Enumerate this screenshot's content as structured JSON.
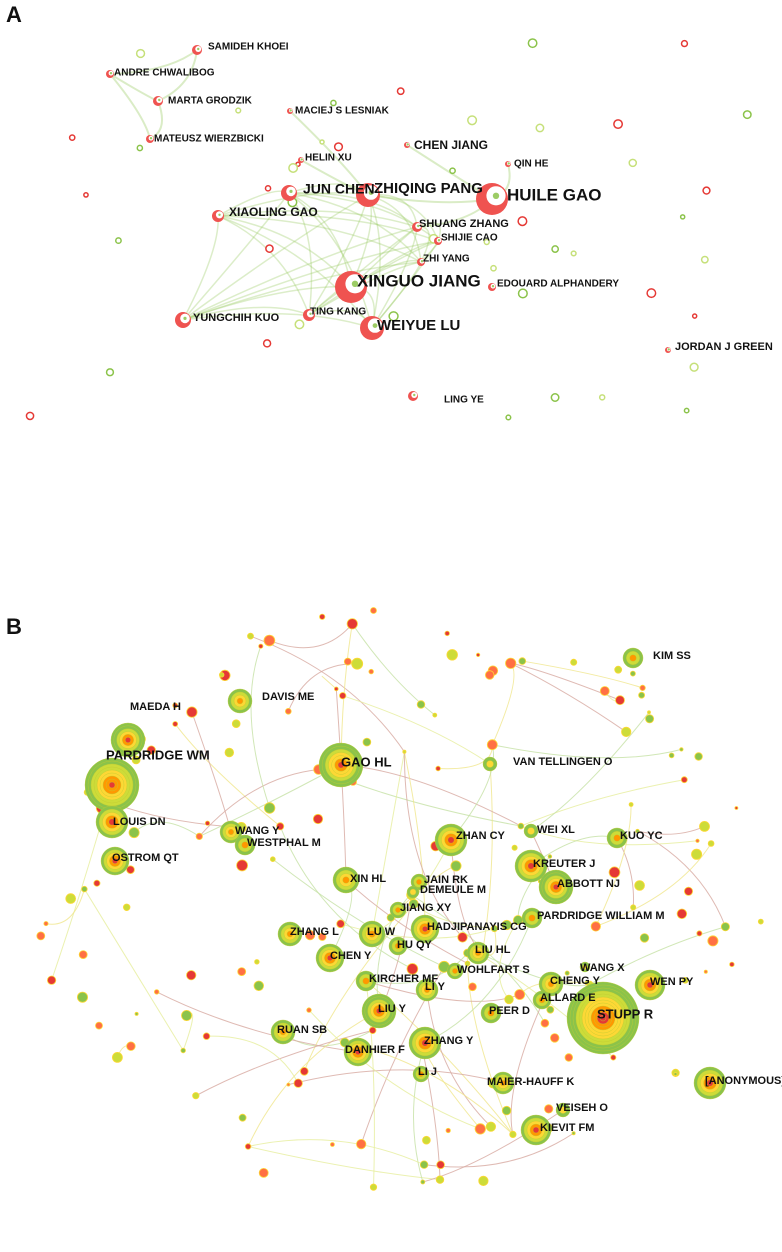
{
  "panels": [
    {
      "label": "A",
      "nodes": [
        "SAMIDEH KHOEI",
        "ANDRE CHWALIBOG",
        "MARTA GRODZIK",
        "MATEUSZ WIERZBICKI",
        "MACIEJ S LESNIAK",
        "HELIN XU",
        "CHEN JIANG",
        "QIN HE",
        "JUN CHEN",
        "ZHIQING PANG",
        "HUILE GAO",
        "XIAOLING GAO",
        "SHUANG ZHANG",
        "SHIJIE CAO",
        "ZHI YANG",
        "XINGUO JIANG",
        "EDOUARD ALPHANDERY",
        "YUNGCHIH KUO",
        "TING KANG",
        "WEIYUE LU",
        "JORDAN J GREEN",
        "LING YE"
      ]
    },
    {
      "label": "B",
      "nodes": [
        "KIM SS",
        "DAVIS ME",
        "MAEDA H",
        "VAN TELLINGEN O",
        "PARDRIDGE WM",
        "GAO HL",
        "LOUIS DN",
        "WANG Y",
        "WEI XL",
        "ZHAN CY",
        "KUO YC",
        "WESTPHAL M",
        "OSTROM QT",
        "KREUTER J",
        "XIN HL",
        "JAIN RK",
        "ABBOTT NJ",
        "DEMEULE M",
        "JIANG XY",
        "PARDRIDGE WILLIAM M",
        "HADJIPANAYIS CG",
        "ZHANG L",
        "LU W",
        "HU QY",
        "LIU HL",
        "CHEN Y",
        "WANG X",
        "WOHLFART S",
        "CHENG Y",
        "WEN PY",
        "KIRCHER MF",
        "LI Y",
        "ALLARD E",
        "PEER D",
        "LIU Y",
        "STUPP R",
        "RUAN SB",
        "ZHANG Y",
        "DANHIER F",
        "LI J",
        "MAIER-HAUFF K",
        "[ANONYMOUS]",
        "VEISEH O",
        "KIEVIT FM"
      ]
    }
  ]
}
